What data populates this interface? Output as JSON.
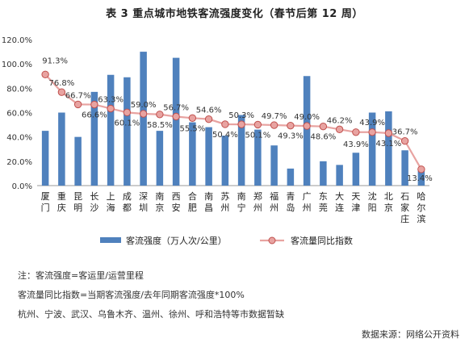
{
  "title": "表 3  重点城市地铁客流强度变化（春节后第 12 周）",
  "notes": [
    "注：客流强度=客运里/运营里程",
    "客流量同比指数=当期客流强度/去年同期客流强度*100%",
    "杭州、宁波、武汉、乌鲁木齐、温州、徐州、呼和浩特等市数据暂缺"
  ],
  "source": "数据来源：网络公开资料",
  "chart_data": {
    "type": "bar",
    "categories": [
      "厦门",
      "重庆",
      "昆明",
      "长沙",
      "上海",
      "成都",
      "深圳",
      "南京",
      "西安",
      "合肥",
      "南昌",
      "苏州",
      "南宁",
      "郑州",
      "福州",
      "青岛",
      "广州",
      "东莞",
      "大连",
      "天津",
      "沈阳",
      "北京",
      "石家庄",
      "哈尔滨"
    ],
    "series": [
      {
        "name": "客流强度（万人次/公里）",
        "type": "bar",
        "axis_scale": "same as left axis (values read as fraction of 1.00 = 100%)",
        "values": [
          0.45,
          0.6,
          0.4,
          0.77,
          0.91,
          0.89,
          1.1,
          0.45,
          1.05,
          0.52,
          0.48,
          0.41,
          0.58,
          0.46,
          0.33,
          0.14,
          0.9,
          0.2,
          0.17,
          0.27,
          0.6,
          0.61,
          0.29,
          0.12
        ],
        "color": "#4f81bd"
      },
      {
        "name": "客流量同比指数",
        "type": "line",
        "values": [
          91.3,
          76.8,
          66.7,
          66.6,
          63.3,
          60.1,
          59.0,
          58.5,
          56.7,
          55.5,
          54.6,
          50.4,
          50.3,
          50.1,
          49.7,
          49.3,
          49.0,
          48.6,
          46.2,
          43.9,
          43.9,
          43.1,
          36.7,
          13.4
        ],
        "labels": [
          "91.3%",
          "76.8%",
          "66.7%",
          "66.6%",
          "63.3%",
          "60.1%",
          "59.0%",
          "58.5%",
          "56.7%",
          "55.5%",
          "54.6%",
          "50.4%",
          "50.3%",
          "50.1%",
          "49.7%",
          "49.3%",
          "49.0%",
          "48.6%",
          "46.2%",
          "43.9%",
          "43.9%",
          "43.1%",
          "36.7%",
          "13.4%"
        ],
        "color": "#c0504d"
      }
    ],
    "yticks": [
      "0.0%",
      "20.0%",
      "40.0%",
      "60.0%",
      "80.0%",
      "100.0%",
      "120.0%"
    ],
    "ylim": [
      0,
      120
    ],
    "grid": false,
    "legend_position": "bottom"
  }
}
